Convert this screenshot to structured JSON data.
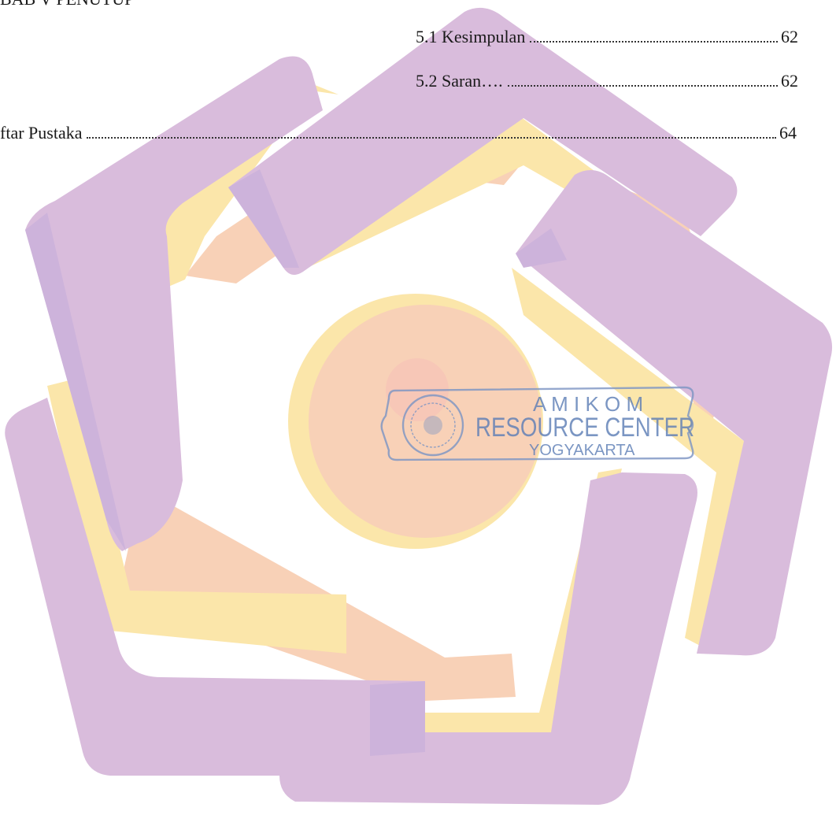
{
  "document": {
    "clipped_heading": "BAB V PENUTUP",
    "toc": [
      {
        "label": "5.1 Kesimpulan",
        "page": "62"
      },
      {
        "label": "5.2  Saran….",
        "page": "62"
      },
      {
        "label": "ftar Pustaka",
        "page": "64"
      }
    ]
  },
  "watermark": {
    "name": "amikom-logo-watermark",
    "colors": {
      "purple": "#d9bcdc",
      "purple_shade": "#cdb3db",
      "yellow": "#fbe6aa",
      "peach": "#f8d1b7"
    }
  },
  "stamp": {
    "line1": "A M I K O M",
    "line2": "RESOURCE CENTER",
    "line3": "YOGYAKARTA",
    "color": "#5f7fb6"
  }
}
